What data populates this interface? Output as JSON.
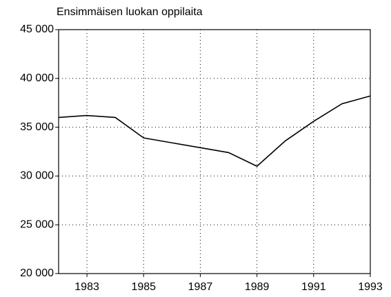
{
  "chart_data": {
    "type": "line",
    "title": "Ensimmäisen luokan oppilaita",
    "x": [
      1982,
      1983,
      1984,
      1985,
      1986,
      1987,
      1988,
      1989,
      1990,
      1991,
      1992,
      1993
    ],
    "series": [
      {
        "name": null,
        "color": "#000000",
        "values": [
          36000,
          36200,
          36000,
          33900,
          33400,
          32900,
          32400,
          31000,
          33600,
          35600,
          37400,
          38200
        ]
      }
    ],
    "xlim": [
      1982,
      1993
    ],
    "xticks": [
      1983,
      1985,
      1987,
      1989,
      1991,
      1993
    ],
    "ylim": [
      20000,
      45000
    ],
    "yticks": [
      {
        "value": 20000,
        "label": "20 000"
      },
      {
        "value": 25000,
        "label": "25 000"
      },
      {
        "value": 30000,
        "label": "30 000"
      },
      {
        "value": 35000,
        "label": "35 000"
      },
      {
        "value": 40000,
        "label": "40 000"
      },
      {
        "value": 45000,
        "label": "45 000"
      }
    ],
    "grid": true
  }
}
